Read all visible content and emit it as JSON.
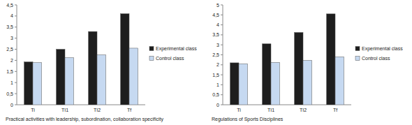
{
  "chart_data": [
    {
      "type": "bar",
      "title": "Practical activities with leadership, subordination, collaboration specificity",
      "categories": [
        "Ti",
        "TI1",
        "TI2",
        "Tf"
      ],
      "series": [
        {
          "name": "Experimental class",
          "color": "#1e1e1e",
          "values": [
            1.93,
            2.5,
            3.3,
            4.1
          ]
        },
        {
          "name": "Control class",
          "color": "#c6d9f1",
          "values": [
            1.9,
            2.12,
            2.25,
            2.55
          ]
        }
      ],
      "ylim": [
        0,
        4.5
      ],
      "yticks": [
        0,
        {
          "value": 0.5,
          "label": "0,5"
        },
        1,
        {
          "value": 1.5,
          "label": "1,5"
        },
        2,
        {
          "value": 2.5,
          "label": "2,5"
        },
        3,
        {
          "value": 3.5,
          "label": "3,5"
        },
        4,
        {
          "value": 4.5,
          "label": "4,5"
        }
      ],
      "grid": false,
      "legend": "right"
    },
    {
      "type": "bar",
      "title": "Regulations of Sports Disciplines",
      "categories": [
        "Ti",
        "TI1",
        "TI2",
        "Tf"
      ],
      "series": [
        {
          "name": "Experimental class",
          "color": "#1e1e1e",
          "values": [
            2.1,
            3.05,
            3.62,
            4.55
          ]
        },
        {
          "name": "Control class",
          "color": "#c6d9f1",
          "values": [
            2.05,
            2.12,
            2.22,
            2.4
          ]
        }
      ],
      "ylim": [
        0,
        5
      ],
      "yticks": [
        0,
        {
          "value": 0.5,
          "label": "0,5"
        },
        1,
        {
          "value": 1.5,
          "label": "1,5"
        },
        2,
        {
          "value": 2.5,
          "label": "2,5"
        },
        3,
        {
          "value": 3.5,
          "label": "3,5"
        },
        4,
        {
          "value": 4.5,
          "label": "4,5"
        },
        5
      ],
      "grid": false,
      "legend": "right"
    }
  ]
}
